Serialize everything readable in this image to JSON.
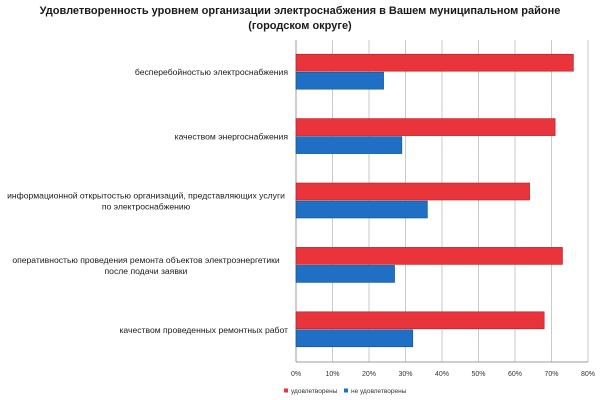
{
  "chart_data": {
    "type": "bar",
    "orientation": "horizontal",
    "title": "Удовлетворенность уровнем организации электроснабжения в Вашем муниципальном районе (городском округе)",
    "categories": [
      [
        "бесперебойностью  электроснабжения"
      ],
      [
        "качеством энергоснабжения"
      ],
      [
        "информационной открытостью организаций, представляющих услуги",
        "по электроснабжению"
      ],
      [
        "оперативностью проведения ремонта  объектов электроэнергетики",
        "после подачи заявки"
      ],
      [
        "качеством проведенных ремонтных  работ"
      ]
    ],
    "series": [
      {
        "name": "удовлетворены",
        "color": "#e8343a",
        "values": [
          76,
          71,
          64,
          73,
          68
        ]
      },
      {
        "name": "не удовлетворены",
        "color": "#1f6fc4",
        "values": [
          24,
          29,
          36,
          27,
          32
        ]
      }
    ],
    "xlim": [
      0,
      80
    ],
    "xticks": [
      0,
      10,
      20,
      30,
      40,
      50,
      60,
      70,
      80
    ],
    "tick_suffix": "%",
    "grid": true,
    "legend_position": "bottom"
  }
}
